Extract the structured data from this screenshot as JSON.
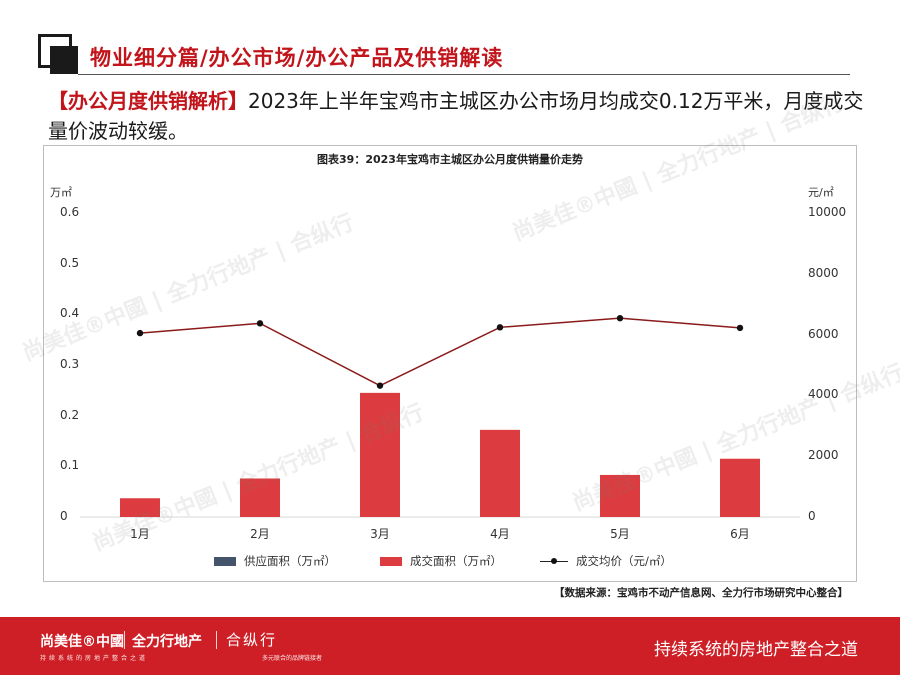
{
  "header": {
    "title": "物业细分篇/办公市场/办公产品及供销解读"
  },
  "intro": {
    "tag": "【办公月度供销解析】",
    "text": "2023年上半年宝鸡市主城区办公市场月均成交0.12万平米，月度成交量价波动较缓。"
  },
  "chart_data": {
    "type": "bar",
    "title": "图表39：2023年宝鸡市主城区办公月度供销量价走势",
    "categories": [
      "1月",
      "2月",
      "3月",
      "4月",
      "5月",
      "6月"
    ],
    "left_axis": {
      "unit": "万㎡",
      "ticks": [
        "0.6",
        "0.5",
        "0.4",
        "0.3",
        "0.2",
        "0.1",
        "0"
      ],
      "ylim": [
        0,
        0.6
      ]
    },
    "right_axis": {
      "unit": "元/㎡",
      "ticks": [
        "10000",
        "8000",
        "6000",
        "4000",
        "2000",
        "0"
      ],
      "ylim": [
        0,
        10000
      ]
    },
    "series": [
      {
        "name": "供应面积（万㎡）",
        "kind": "bar",
        "axis": "left",
        "color": "#44546a",
        "values": [
          0,
          0,
          0,
          0,
          0,
          0
        ]
      },
      {
        "name": "成交面积（万㎡）",
        "kind": "bar",
        "axis": "left",
        "color": "#dc3c3f",
        "values": [
          0.037,
          0.076,
          0.245,
          0.172,
          0.083,
          0.115
        ]
      },
      {
        "name": "成交均价（元/㎡）",
        "kind": "line",
        "axis": "right",
        "color": "#8b1a1a",
        "values": [
          6050,
          6370,
          4320,
          6240,
          6540,
          6220
        ]
      }
    ],
    "grid": false,
    "legend_position": "bottom"
  },
  "source": "【数据来源：宝鸡市不动产信息网、全力行市场研究中心整合】",
  "footer": {
    "brand_a": "尚美佳®中國",
    "brand_a_sub": "持续系统的房地产整合之道",
    "brand_b": "全力行地产",
    "brand_c": "合纵行",
    "brand_c_sub": "多元联合的品牌链接者",
    "slogan": "持续系统的房地产整合之道"
  },
  "watermark": {
    "text": "尚美佳®中國 | 全力行地产 | 合纵行"
  },
  "colors": {
    "accent": "#c2141b",
    "footer_bg": "#cf1f26"
  }
}
